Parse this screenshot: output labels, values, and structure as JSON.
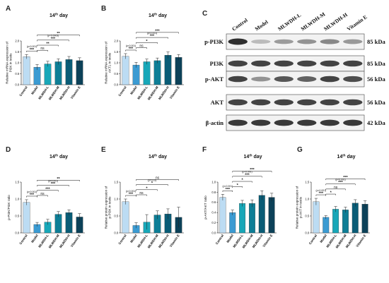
{
  "figure": {
    "colors": [
      "#bcdcf3",
      "#3b9bd2",
      "#18a7b8",
      "#0e7e96",
      "#0a5c76",
      "#0c4158"
    ]
  },
  "chart_data": [
    {
      "id": "A",
      "letter": "A",
      "type": "bar",
      "title_main": "14",
      "title_sup": "th",
      "title_rest": " day",
      "ylabel": [
        "Relative mRNA expression of",
        "PI3K in testis"
      ],
      "categories": [
        "Control",
        "Model",
        "MLWDH-L",
        "MLWDH-M",
        "MLWDH-H",
        "Vitamin E"
      ],
      "values": [
        1.28,
        0.8,
        0.95,
        1.05,
        1.15,
        1.1
      ],
      "errors": [
        0.1,
        0.12,
        0.12,
        0.13,
        0.14,
        0.13
      ],
      "ylim": [
        0,
        2.0
      ],
      "yticks": [
        0,
        0.5,
        1.0,
        1.5,
        2.0
      ],
      "yticklabels": [
        "0.0",
        "0.5",
        "1.0",
        "1.5",
        "2.0"
      ],
      "brackets": [
        {
          "from": 0,
          "to": 1,
          "label": "***",
          "note": "(p<0.001)"
        },
        {
          "from": 1,
          "to": 2,
          "label": "ns",
          "note": ""
        },
        {
          "from": 1,
          "to": 3,
          "label": "**",
          "note": ""
        },
        {
          "from": 1,
          "to": 4,
          "label": "***",
          "note": "(p=0.0003)"
        },
        {
          "from": 1,
          "to": 5,
          "label": "**",
          "note": ""
        }
      ]
    },
    {
      "id": "B",
      "letter": "B",
      "type": "bar",
      "title_main": "14",
      "title_sup": "th",
      "title_rest": " day",
      "ylabel": [
        "Relative mRNA expression of",
        "AKT1 in testis"
      ],
      "categories": [
        "Control",
        "Model",
        "MLWDH-L",
        "MLWDH-M",
        "MLWDH-H",
        "Vitamin E"
      ],
      "values": [
        1.3,
        0.9,
        1.05,
        1.1,
        1.35,
        1.25
      ],
      "errors": [
        0.12,
        0.12,
        0.12,
        0.12,
        0.15,
        0.13
      ],
      "ylim": [
        0,
        2.0
      ],
      "yticks": [
        0,
        0.5,
        1.0,
        1.5,
        2.0
      ],
      "yticklabels": [
        "0.0",
        "0.5",
        "1.0",
        "1.5",
        "2.0"
      ],
      "brackets": [
        {
          "from": 0,
          "to": 1,
          "label": "***",
          "note": "(p<0.001)"
        },
        {
          "from": 1,
          "to": 2,
          "label": "ns",
          "note": ""
        },
        {
          "from": 1,
          "to": 3,
          "label": "*",
          "note": ""
        },
        {
          "from": 1,
          "to": 4,
          "label": "***",
          "note": "(p<0.001)"
        },
        {
          "from": 1,
          "to": 5,
          "label": "***",
          "note": ""
        }
      ]
    },
    {
      "id": "D",
      "letter": "D",
      "type": "bar",
      "title_main": "14",
      "title_sup": "th",
      "title_rest": " day",
      "ylabel": [
        "p-PI3K/PI3K ratio"
      ],
      "categories": [
        "Control",
        "Model",
        "MLWDH-L",
        "MLWDH-M",
        "MLWDH-H",
        "Vitamin E"
      ],
      "values": [
        0.9,
        0.25,
        0.32,
        0.55,
        0.6,
        0.47
      ],
      "errors": [
        0.08,
        0.06,
        0.08,
        0.08,
        0.08,
        0.1
      ],
      "ylim": [
        0,
        1.5
      ],
      "yticks": [
        0,
        0.5,
        1.0,
        1.5
      ],
      "yticklabels": [
        "0.0",
        "0.5",
        "1.0",
        "1.5"
      ],
      "brackets": [
        {
          "from": 0,
          "to": 1,
          "label": "***",
          "note": "(p<0.001)"
        },
        {
          "from": 1,
          "to": 2,
          "label": "ns",
          "note": ""
        },
        {
          "from": 1,
          "to": 3,
          "label": "***",
          "note": ""
        },
        {
          "from": 1,
          "to": 4,
          "label": "***",
          "note": "(p<0.001)"
        },
        {
          "from": 1,
          "to": 5,
          "label": "**",
          "note": ""
        }
      ]
    },
    {
      "id": "E",
      "letter": "E",
      "type": "bar",
      "title_main": "14",
      "title_sup": "th",
      "title_rest": " day",
      "ylabel": [
        "Relative protein expression of",
        "p-PI3K in testis"
      ],
      "categories": [
        "Control",
        "Model",
        "MLWDH-L",
        "MLWDH-M",
        "MLWDH-H",
        "Vitamin E"
      ],
      "values": [
        0.92,
        0.22,
        0.32,
        0.53,
        0.56,
        0.46
      ],
      "errors": [
        0.08,
        0.08,
        0.22,
        0.12,
        0.15,
        0.3
      ],
      "ylim": [
        0,
        1.5
      ],
      "yticks": [
        0,
        0.5,
        1.0,
        1.5
      ],
      "yticklabels": [
        "0.0",
        "0.5",
        "1.0",
        "1.5"
      ],
      "brackets": [
        {
          "from": 0,
          "to": 1,
          "label": "***",
          "note": "(p<0.001)"
        },
        {
          "from": 1,
          "to": 2,
          "label": "ns",
          "note": ""
        },
        {
          "from": 1,
          "to": 3,
          "label": "*",
          "note": ""
        },
        {
          "from": 1,
          "to": 4,
          "label": "*",
          "note": "(p=0.03)"
        },
        {
          "from": 1,
          "to": 5,
          "label": "ns",
          "note": ""
        }
      ]
    },
    {
      "id": "F",
      "letter": "F",
      "type": "bar",
      "title_main": "14",
      "title_sup": "th",
      "title_rest": " day",
      "ylabel": [
        "p-AKT/AKT ratio"
      ],
      "categories": [
        "Control",
        "Model",
        "MLWDH-L",
        "MLWDH-M",
        "MLWDH-H",
        "Vitamin E"
      ],
      "values": [
        0.7,
        0.4,
        0.58,
        0.58,
        0.74,
        0.7
      ],
      "errors": [
        0.06,
        0.05,
        0.06,
        0.07,
        0.09,
        0.08
      ],
      "ylim": [
        0,
        1.0
      ],
      "yticks": [
        0,
        0.2,
        0.4,
        0.6,
        0.8,
        1.0
      ],
      "yticklabels": [
        "0.0",
        "0.2",
        "0.4",
        "0.6",
        "0.8",
        "1.0"
      ],
      "brackets": [
        {
          "from": 0,
          "to": 1,
          "label": "***",
          "note": "(p<0.001)"
        },
        {
          "from": 1,
          "to": 2,
          "label": "*",
          "note": ""
        },
        {
          "from": 1,
          "to": 3,
          "label": "*",
          "note": ""
        },
        {
          "from": 1,
          "to": 4,
          "label": "***",
          "note": "(p<0.001)"
        },
        {
          "from": 1,
          "to": 5,
          "label": "***",
          "note": ""
        }
      ]
    },
    {
      "id": "G",
      "letter": "G",
      "type": "bar",
      "title_main": "14",
      "title_sup": "th",
      "title_rest": " day",
      "ylabel": [
        "Relative protein expression of",
        "p-AKT in testis"
      ],
      "categories": [
        "Control",
        "Model",
        "MLWDH-L",
        "MLWDH-M",
        "MLWDH-H",
        "Vitamin E"
      ],
      "values": [
        0.92,
        0.46,
        0.7,
        0.68,
        0.88,
        0.85
      ],
      "errors": [
        0.1,
        0.05,
        0.08,
        0.08,
        0.1,
        0.1
      ],
      "ylim": [
        0,
        1.5
      ],
      "yticks": [
        0,
        0.5,
        1.0,
        1.5
      ],
      "yticklabels": [
        "0.0",
        "0.5",
        "1.0",
        "1.5"
      ],
      "brackets": [
        {
          "from": 0,
          "to": 1,
          "label": "***",
          "note": "(p<0.001)"
        },
        {
          "from": 1,
          "to": 2,
          "label": "*",
          "note": ""
        },
        {
          "from": 1,
          "to": 3,
          "label": "ns",
          "note": ""
        },
        {
          "from": 1,
          "to": 4,
          "label": "***",
          "note": "(p<0.001)"
        },
        {
          "from": 1,
          "to": 5,
          "label": "***",
          "note": ""
        }
      ]
    }
  ],
  "western_blot": {
    "letter": "C",
    "lanes": [
      "Control",
      "Model",
      "MLWDH-L",
      "MLWDH-M",
      "MLWDH-H",
      "Vitamin E"
    ],
    "proteins": [
      {
        "name": "p-PI3K",
        "kda": "85 kDa",
        "intensity": [
          0.95,
          0.25,
          0.4,
          0.45,
          0.5,
          0.42
        ]
      },
      {
        "name": "PI3K",
        "kda": "85 kDa",
        "intensity": [
          0.85,
          0.85,
          0.85,
          0.85,
          0.85,
          0.85
        ]
      },
      {
        "name": "p-AKT",
        "kda": "56 kDa",
        "intensity": [
          0.85,
          0.45,
          0.75,
          0.7,
          0.85,
          0.8
        ]
      },
      {
        "name": "AKT",
        "kda": "56 kDa",
        "intensity": [
          0.85,
          0.85,
          0.85,
          0.85,
          0.85,
          0.85
        ]
      },
      {
        "name": "β-actin",
        "kda": "42 kDa",
        "intensity": [
          0.9,
          0.9,
          0.9,
          0.9,
          0.9,
          0.9
        ]
      }
    ]
  }
}
